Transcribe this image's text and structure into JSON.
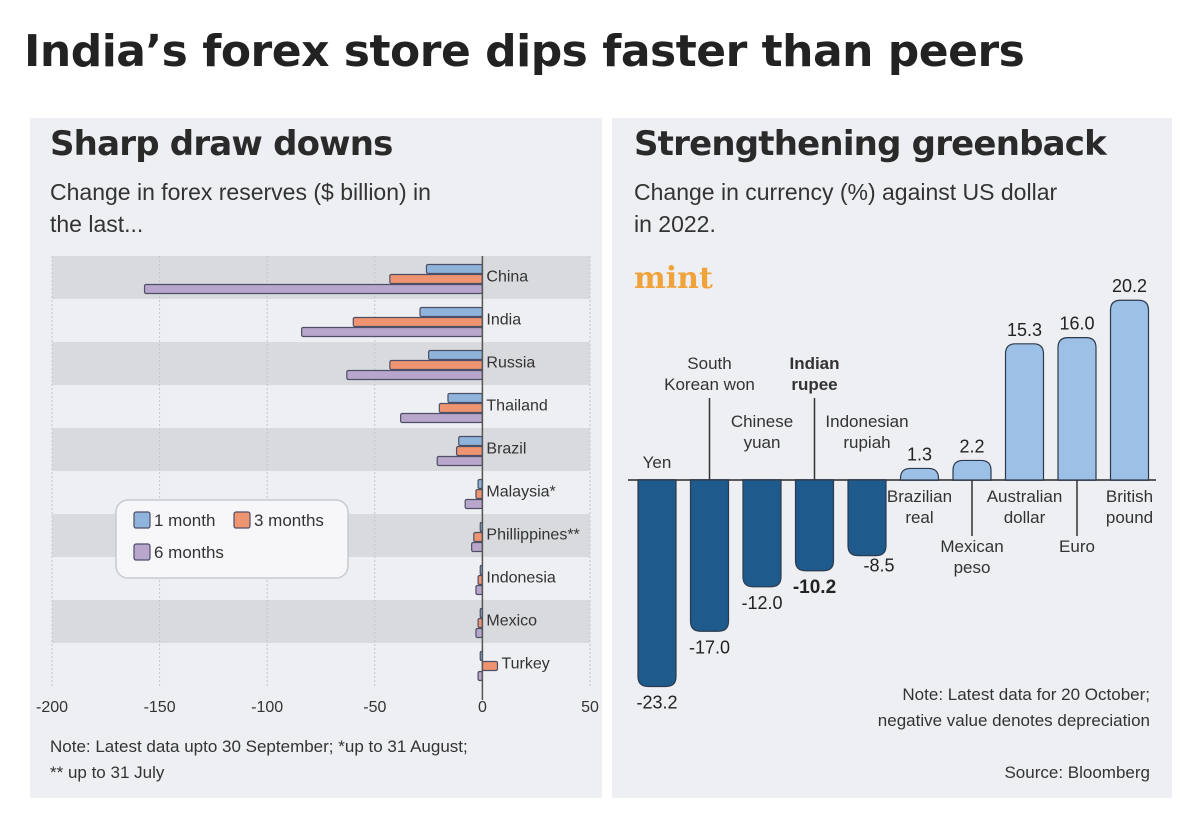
{
  "title": "India’s forex store dips faster than peers",
  "brand": "mint",
  "chart_data": [
    {
      "type": "bar",
      "orientation": "horizontal",
      "title": "Sharp draw downs",
      "subtitle_lines": [
        "Change in forex reserves ($ billion) in",
        "the last..."
      ],
      "categories": [
        "China",
        "India",
        "Russia",
        "Thailand",
        "Brazil",
        "Malaysia*",
        "Phillippines**",
        "Indonesia",
        "Mexico",
        "Turkey"
      ],
      "series": [
        {
          "name": "1 month",
          "color": "#8fb3db",
          "values": [
            -26,
            -29,
            -25,
            -16,
            -11,
            -2,
            -1,
            -1,
            -1,
            -1
          ]
        },
        {
          "name": "3 months",
          "color": "#ee9470",
          "values": [
            -43,
            -60,
            -43,
            -20,
            -12,
            -3,
            -4,
            -2,
            -2,
            7
          ]
        },
        {
          "name": "6 months",
          "color": "#b9a6cc",
          "values": [
            -157,
            -84,
            -63,
            -38,
            -21,
            -8,
            -5,
            -3,
            -3,
            -2
          ]
        }
      ],
      "xlim": [
        -200,
        50
      ],
      "xticks": [
        -200,
        -150,
        -100,
        -50,
        0,
        50
      ],
      "xtick_labels": [
        "-200",
        "-150",
        "-100",
        "-50",
        "0",
        "50"
      ],
      "legend_placement": "center-left",
      "note_lines": [
        "Note: Latest data upto 30 September; *up to 31 August;",
        "** up to 31 July"
      ]
    },
    {
      "type": "bar",
      "title": "Strengthening greenback",
      "subtitle_lines": [
        "Change in currency (%) against US dollar",
        "in 2022."
      ],
      "categories": [
        {
          "lines": [
            "Yen"
          ],
          "bold": false
        },
        {
          "lines": [
            "South",
            "Korean won"
          ],
          "bold": false
        },
        {
          "lines": [
            "Chinese",
            "yuan"
          ],
          "bold": false
        },
        {
          "lines": [
            "Indian",
            "rupee"
          ],
          "bold": true
        },
        {
          "lines": [
            "Indonesian",
            "rupiah"
          ],
          "bold": false
        },
        {
          "lines": [
            "Brazilian",
            "real"
          ],
          "bold": false
        },
        {
          "lines": [
            "Mexican",
            "peso"
          ],
          "bold": false
        },
        {
          "lines": [
            "Australian",
            "dollar"
          ],
          "bold": false
        },
        {
          "lines": [
            "Euro"
          ],
          "bold": false
        },
        {
          "lines": [
            "British",
            "pound"
          ],
          "bold": false
        }
      ],
      "values": [
        -23.2,
        -17.0,
        -12.0,
        -10.2,
        -8.5,
        1.3,
        2.2,
        15.3,
        16.0,
        20.2
      ],
      "value_labels": [
        "-23.2",
        "-17.0",
        "-12.0",
        "-10.2",
        "-8.5",
        "1.3",
        "2.2",
        "15.3",
        "16.0",
        "20.2"
      ],
      "colors": {
        "negative": "#1f5a8c",
        "positive": "#9cc0e6"
      },
      "note_lines": [
        "Note: Latest data for 20 October;",
        "negative value denotes depreciation"
      ],
      "source": "Source: Bloomberg"
    }
  ]
}
